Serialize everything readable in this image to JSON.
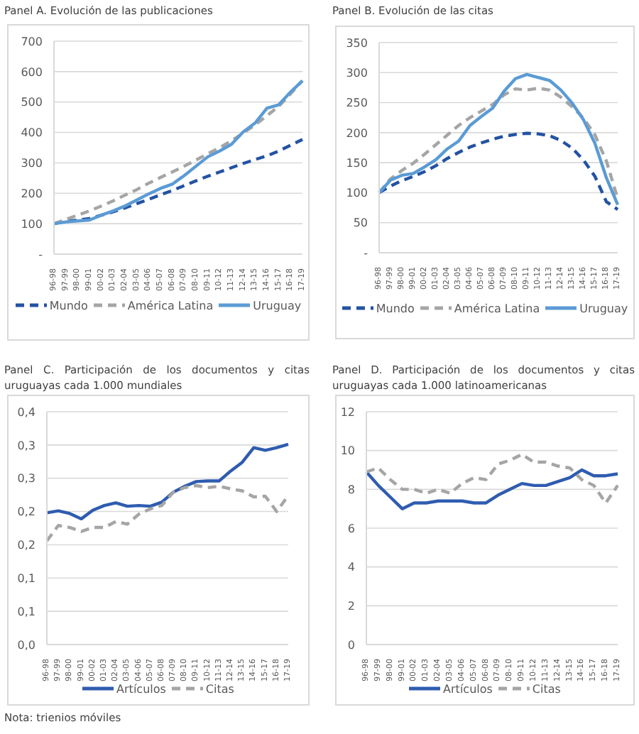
{
  "chart_data": [
    {
      "type": "line",
      "title": "Panel A. Evolución de las publicaciones",
      "categories": [
        "96-98",
        "97-99",
        "98-00",
        "99-01",
        "00-02",
        "01-03",
        "02-04",
        "03-05",
        "04-06",
        "05-07",
        "06-08",
        "07-09",
        "08-10",
        "09-11",
        "10-12",
        "11-13",
        "12-14",
        "13-15",
        "14-16",
        "15-17",
        "16-18",
        "17-19"
      ],
      "series": [
        {
          "name": "Mundo",
          "color": "#2352a3",
          "line_style": "dashed",
          "values": [
            100,
            108,
            112,
            117,
            128,
            139,
            152,
            166,
            180,
            195,
            209,
            225,
            241,
            256,
            270,
            284,
            298,
            311,
            323,
            339,
            358,
            377
          ]
        },
        {
          "name": "América Latina",
          "color": "#a5a5a5",
          "line_style": "dashed",
          "values": [
            100,
            114,
            128,
            142,
            158,
            175,
            194,
            212,
            233,
            252,
            270,
            289,
            309,
            330,
            350,
            373,
            398,
            425,
            455,
            486,
            527,
            570
          ]
        },
        {
          "name": "Uruguay",
          "color": "#5b9bd5",
          "line_style": "solid",
          "values": [
            100,
            106,
            109,
            112,
            128,
            142,
            158,
            178,
            198,
            216,
            230,
            258,
            289,
            320,
            339,
            361,
            402,
            431,
            480,
            491,
            533,
            570
          ]
        }
      ],
      "ylim": [
        0,
        700
      ],
      "yticks": [
        {
          "value": 0,
          "label": "-"
        },
        100,
        200,
        300,
        400,
        500,
        600,
        700
      ],
      "grid": "y",
      "legend": "bottom",
      "marker": "none"
    },
    {
      "type": "line",
      "title": "Panel B. Evolución de las citas",
      "categories": [
        "96-98",
        "97-99",
        "98-00",
        "99-01",
        "00-02",
        "01-03",
        "02-04",
        "03-05",
        "04-06",
        "05-07",
        "06-08",
        "07-09",
        "08-10",
        "09-11",
        "10-12",
        "11-13",
        "12-14",
        "13-15",
        "14-16",
        "15-17",
        "16-18",
        "17-19"
      ],
      "series": [
        {
          "name": "Mundo",
          "color": "#2352a3",
          "line_style": "dashed",
          "values": [
            100,
            111,
            120,
            127,
            135,
            145,
            157,
            167,
            176,
            183,
            189,
            194,
            197,
            199,
            198,
            195,
            187,
            174,
            154,
            127,
            85,
            72
          ]
        },
        {
          "name": "América Latina",
          "color": "#a5a5a5",
          "line_style": "dashed",
          "values": [
            100,
            123,
            137,
            149,
            164,
            180,
            196,
            212,
            225,
            236,
            247,
            263,
            273,
            271,
            274,
            271,
            259,
            243,
            224,
            196,
            153,
            90
          ]
        },
        {
          "name": "Uruguay",
          "color": "#5b9bd5",
          "line_style": "solid",
          "values": [
            100,
            121,
            129,
            132,
            143,
            155,
            173,
            186,
            212,
            227,
            241,
            269,
            290,
            297,
            292,
            287,
            271,
            249,
            221,
            182,
            125,
            80
          ]
        }
      ],
      "ylim": [
        0,
        350
      ],
      "yticks": [
        {
          "value": 0,
          "label": "-"
        },
        50,
        100,
        150,
        200,
        250,
        300,
        350
      ],
      "grid": "y",
      "legend": "bottom",
      "marker": "none"
    },
    {
      "type": "line",
      "title": "Panel C. Participación de los documentos y citas uruguayas cada 1.000 mundiales",
      "categories": [
        "96-98",
        "97-99",
        "98-00",
        "99-01",
        "00-02",
        "01-03",
        "02-04",
        "03-05",
        "04-06",
        "05-07",
        "06-08",
        "07-09",
        "08-10",
        "09-11",
        "10-12",
        "11-13",
        "12-14",
        "13-15",
        "14-16",
        "15-17",
        "16-18",
        "17-19"
      ],
      "series": [
        {
          "name": "Artículos",
          "color": "#2f5cb0",
          "line_style": "solid",
          "values": [
            0.198,
            0.201,
            0.197,
            0.189,
            0.202,
            0.209,
            0.213,
            0.208,
            0.209,
            0.208,
            0.214,
            0.229,
            0.238,
            0.245,
            0.246,
            0.246,
            0.261,
            0.274,
            0.296,
            0.292,
            0.296,
            0.301
          ]
        },
        {
          "name": "Citas",
          "color": "#a5a5a5",
          "line_style": "dashed",
          "values": [
            0.156,
            0.179,
            0.176,
            0.17,
            0.176,
            0.176,
            0.185,
            0.181,
            0.196,
            0.204,
            0.209,
            0.229,
            0.236,
            0.239,
            0.236,
            0.238,
            0.234,
            0.231,
            0.222,
            0.223,
            0.2,
            0.224
          ]
        }
      ],
      "ylim": [
        0,
        0.35
      ],
      "yticks": [
        {
          "value": 0,
          "label": "0,0"
        },
        {
          "value": 0.05,
          "label": "0,1"
        },
        {
          "value": 0.1,
          "label": "0,1"
        },
        {
          "value": 0.15,
          "label": "0,2"
        },
        {
          "value": 0.2,
          "label": "0,2"
        },
        {
          "value": 0.25,
          "label": "0,3"
        },
        {
          "value": 0.3,
          "label": "0,3"
        },
        {
          "value": 0.35,
          "label": "0,4"
        }
      ],
      "grid": "y",
      "legend": "bottom",
      "marker": "none",
      "annotations": [
        "Nota: trienios móviles"
      ]
    },
    {
      "type": "line",
      "title": "Panel D. Participación de los documentos y citas uruguayas cada 1.000 latinoamericanas",
      "categories": [
        "96-98",
        "97-99",
        "98-00",
        "99-01",
        "00-02",
        "01-03",
        "02-04",
        "03-05",
        "04-06",
        "05-07",
        "06-08",
        "07-09",
        "08-10",
        "09-11",
        "10-12",
        "11-13",
        "12-14",
        "13-15",
        "14-16",
        "15-17",
        "16-18",
        "17-19"
      ],
      "series": [
        {
          "name": "Artículos",
          "color": "#2f5cb0",
          "line_style": "solid",
          "values": [
            8.9,
            8.2,
            7.6,
            7.0,
            7.3,
            7.3,
            7.4,
            7.4,
            7.4,
            7.3,
            7.3,
            7.7,
            8.0,
            8.3,
            8.2,
            8.2,
            8.4,
            8.6,
            9.0,
            8.7,
            8.7,
            8.8
          ]
        },
        {
          "name": "Citas",
          "color": "#a5a5a5",
          "line_style": "dashed",
          "values": [
            8.9,
            9.1,
            8.5,
            8.0,
            8.0,
            7.8,
            8.0,
            7.8,
            8.3,
            8.6,
            8.5,
            9.3,
            9.5,
            9.8,
            9.4,
            9.4,
            9.2,
            9.1,
            8.5,
            8.2,
            7.3,
            8.2
          ]
        }
      ],
      "ylim": [
        0,
        12
      ],
      "yticks": [
        0,
        2,
        4,
        6,
        8,
        10,
        12
      ],
      "grid": "y",
      "legend": "bottom",
      "marker": "none"
    }
  ]
}
